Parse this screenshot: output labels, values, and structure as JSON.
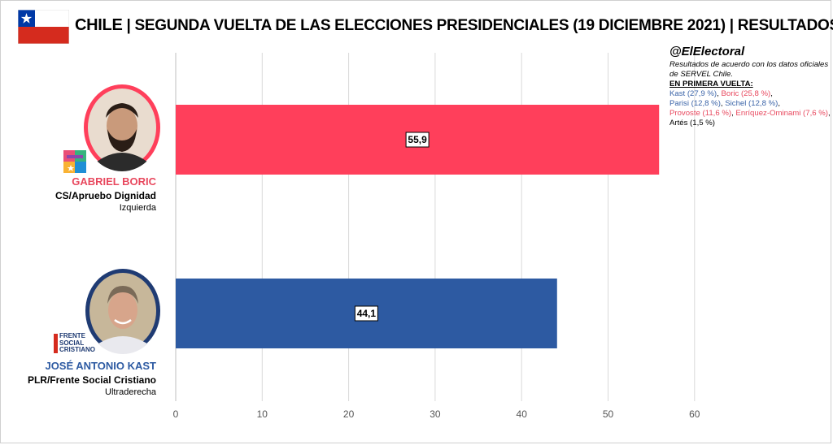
{
  "header": {
    "country": "CHILE",
    "title": "| SEGUNDA VUELTA DE LAS ELECCIONES PRESIDENCIALES (19 DICIEMBRE 2021) | RESULTADOS"
  },
  "colors": {
    "boric": "#ff3f5b",
    "kast": "#2d5aa2",
    "boric_text": "#e8485e",
    "kast_text": "#2d5aa2"
  },
  "candidates": [
    {
      "name": "GABRIEL BORIC",
      "party": "CS/Apruebo Dignidad",
      "ideology": "Izquierda",
      "party_logo": "apruebo-dignidad-logo"
    },
    {
      "name": "JOSÉ ANTONIO KAST",
      "party": "PLR/Frente Social Cristiano",
      "ideology": "Ultraderecha",
      "party_logo_text": [
        "FRENTE",
        "SOCIAL",
        "CRISTIANO"
      ]
    }
  ],
  "info": {
    "handle": "@ElElectoral",
    "note": "Resultados de acuerdo con los datos oficiales de SERVEL Chile.",
    "first_round_heading": "EN PRIMERA VUELTA:",
    "first_round": {
      "kast": "Kast (27,9 %)",
      "boric": "Boric (25,8 %)",
      "parisi": "Parisi (12,8 %)",
      "sichel": "Sichel (12,8 %)",
      "provoste": "Provoste (11,6 %)",
      "enriquez": "Enríquez-Ominami (7,6 %)",
      "artes": "Artés (1,5 %)"
    }
  },
  "chart_data": {
    "type": "bar",
    "orientation": "horizontal",
    "categories": [
      "GABRIEL BORIC",
      "JOSÉ ANTONIO KAST"
    ],
    "values": [
      55.9,
      44.1
    ],
    "value_labels": [
      "55,9",
      "44,1"
    ],
    "xlim": [
      0,
      60
    ],
    "xticks": [
      0,
      10,
      20,
      30,
      40,
      50,
      60
    ],
    "grid": true
  }
}
